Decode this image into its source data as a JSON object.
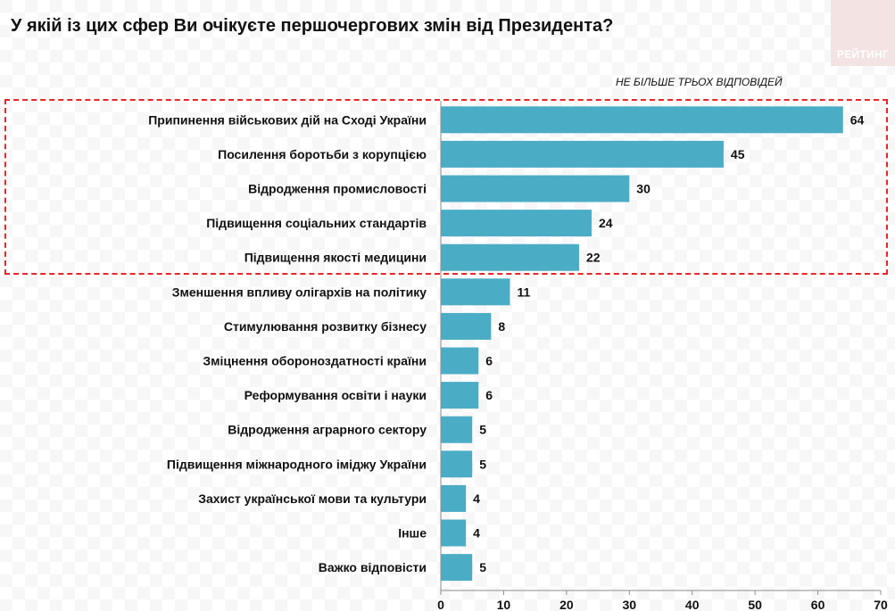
{
  "header": {
    "title": "У якій із цих сфер Ви очікуєте першочергових змін від Президента?",
    "note": "НЕ БІЛЬШЕ ТРЬОХ ВІДПОВІДЕЙ",
    "logo": "РЕЙТИНГ"
  },
  "colors": {
    "bar": "#4bacc6",
    "highlight": "#e8252a",
    "text": "#111111",
    "axis": "#8c8c8c"
  },
  "chart_data": {
    "type": "bar",
    "orientation": "horizontal",
    "title": "У якій із цих сфер Ви очікуєте першочергових змін від Президента?",
    "subtitle": "НЕ БІЛЬШЕ ТРЬОХ ВІДПОВІДЕЙ",
    "categories": [
      "Припинення військових дій на Сході України",
      "Посилення боротьби з корупцією",
      "Відродження промисловості",
      "Підвищення соціальних стандартів",
      "Підвищення якості медицини",
      "Зменшення впливу олігархів на політику",
      "Стимулювання розвитку бізнесу",
      "Зміцнення обороноздатності країни",
      "Реформування освіти і науки",
      "Відродження аграрного сектору",
      "Підвищення міжнародного іміджу України",
      "Захист української мови та культури",
      "Інше",
      "Важко відповісти"
    ],
    "values": [
      64,
      45,
      30,
      24,
      22,
      11,
      8,
      6,
      6,
      5,
      5,
      4,
      4,
      5
    ],
    "value_labels": [
      "64",
      "45",
      "30",
      "24",
      "22",
      "11",
      "8",
      "6",
      "6",
      "5",
      "5",
      "4",
      "4",
      "5"
    ],
    "xlim": [
      0,
      70
    ],
    "xticks": [
      0,
      10,
      20,
      30,
      40,
      50,
      60,
      70
    ],
    "xtick_labels": [
      "0",
      "10",
      "20",
      "30",
      "40",
      "50",
      "60",
      "70"
    ],
    "xlabel": "",
    "ylabel": "",
    "highlighted_top": 5,
    "grid": false,
    "legend": "none"
  }
}
